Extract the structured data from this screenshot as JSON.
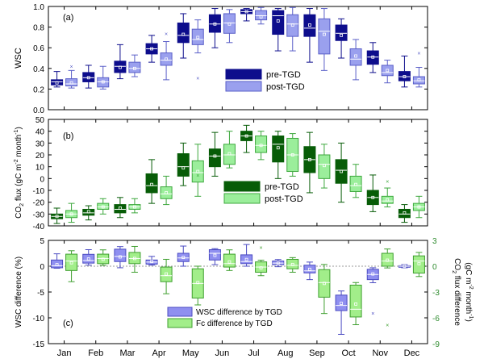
{
  "months": [
    "Jan",
    "Feb",
    "Mar",
    "Apr",
    "May",
    "Jun",
    "Jul",
    "Aug",
    "Sep",
    "Oct",
    "Nov",
    "Dec"
  ],
  "colors": {
    "pre_wsc": "#0d0d8c",
    "post_wsc": "#9aa0ee",
    "post_wsc_stroke": "#5a5fc8",
    "pre_co2": "#075c07",
    "post_co2": "#9bee9b",
    "post_co2_stroke": "#3da83d",
    "wsc_diff": "#8f8ff0",
    "wsc_diff_stroke": "#4b4bc2",
    "fc_diff": "#a2ee8a",
    "fc_diff_stroke": "#3f9f2f",
    "right_axis": "#2e8b2e"
  },
  "chart_data": [
    {
      "type": "box",
      "panel_label": "(a)",
      "ylabel": "WSC",
      "ylim": [
        0.0,
        1.0
      ],
      "yticks": [
        0.0,
        0.2,
        0.4,
        0.6,
        0.8,
        1.0
      ],
      "ytick_labels": [
        "0.0",
        "0.2",
        "0.4",
        "0.6",
        "0.8",
        "1.0"
      ],
      "legend": [
        "pre-TGD",
        "post-TGD"
      ],
      "series": [
        {
          "name": "pre-TGD",
          "min": [
            0.22,
            0.21,
            0.3,
            0.46,
            0.5,
            0.6,
            0.86,
            0.57,
            0.46,
            0.5,
            0.36,
            0.22
          ],
          "q1": [
            0.24,
            0.27,
            0.36,
            0.54,
            0.65,
            0.75,
            0.93,
            0.73,
            0.71,
            0.67,
            0.44,
            0.28
          ],
          "median": [
            0.27,
            0.31,
            0.42,
            0.59,
            0.72,
            0.83,
            0.95,
            0.91,
            0.79,
            0.74,
            0.51,
            0.32
          ],
          "q3": [
            0.29,
            0.36,
            0.47,
            0.64,
            0.84,
            0.92,
            0.97,
            0.96,
            0.92,
            0.82,
            0.57,
            0.37
          ],
          "max": [
            0.37,
            0.43,
            0.63,
            0.72,
            0.93,
            0.98,
            0.98,
            0.98,
            0.98,
            0.88,
            0.65,
            0.52
          ],
          "mean": [
            0.26,
            0.31,
            0.41,
            0.59,
            0.73,
            0.83,
            0.95,
            0.86,
            0.82,
            0.72,
            0.51,
            0.32
          ]
        },
        {
          "name": "post-TGD",
          "min": [
            0.21,
            0.2,
            0.32,
            0.29,
            0.55,
            0.65,
            0.83,
            0.57,
            0.38,
            0.29,
            0.26,
            0.22
          ],
          "q1": [
            0.23,
            0.22,
            0.36,
            0.43,
            0.63,
            0.74,
            0.87,
            0.71,
            0.54,
            0.43,
            0.33,
            0.25
          ],
          "median": [
            0.25,
            0.27,
            0.4,
            0.48,
            0.68,
            0.84,
            0.91,
            0.83,
            0.76,
            0.49,
            0.36,
            0.28
          ],
          "q3": [
            0.3,
            0.31,
            0.46,
            0.55,
            0.78,
            0.93,
            0.96,
            0.92,
            0.88,
            0.59,
            0.43,
            0.32
          ],
          "max": [
            0.38,
            0.42,
            0.53,
            0.66,
            0.87,
            0.97,
            0.99,
            0.99,
            0.98,
            0.68,
            0.48,
            0.41
          ],
          "mean": [
            0.26,
            0.27,
            0.4,
            0.49,
            0.7,
            0.83,
            0.9,
            0.82,
            0.73,
            0.52,
            0.38,
            0.29
          ],
          "outliers": [
            [
              0,
              0.42
            ],
            [
              3,
              0.74
            ],
            [
              4,
              0.31
            ],
            [
              11,
              0.55
            ]
          ]
        }
      ]
    },
    {
      "type": "box",
      "panel_label": "(b)",
      "ylabel_main": "CO",
      "ylabel_sub": "2",
      "ylabel_rest": " flux (gC m",
      "ylabel_sup1": "-2",
      "ylabel_mid": " month",
      "ylabel_sup2": "-1",
      "ylabel_end": ")",
      "ylim": [
        -40,
        50
      ],
      "yticks": [
        -40,
        -30,
        -20,
        -10,
        0,
        10,
        20,
        30,
        40,
        50
      ],
      "ytick_labels": [
        "-40",
        "-30",
        "-20",
        "-10",
        "0",
        "10",
        "20",
        "30",
        "40",
        "50"
      ],
      "legend": [
        "pre-TGD",
        "post-TGD"
      ],
      "series": [
        {
          "name": "pre-TGD",
          "min": [
            -38,
            -35,
            -33,
            -21,
            -6,
            2,
            22,
            0,
            -12,
            -20,
            -28,
            -37
          ],
          "q1": [
            -34,
            -31,
            -29,
            -12,
            2,
            10,
            32,
            14,
            5,
            -4,
            -22,
            -33
          ],
          "median": [
            -32,
            -29,
            -26,
            -6,
            10,
            19,
            36,
            29,
            16,
            7,
            -16,
            -30
          ],
          "q3": [
            -30,
            -26,
            -22,
            4,
            21,
            25,
            40,
            36,
            27,
            16,
            -10,
            -26
          ],
          "max": [
            -25,
            -23,
            -16,
            16,
            30,
            39,
            45,
            40,
            39,
            30,
            3,
            -22
          ],
          "mean": [
            -32,
            -28,
            -25,
            -5,
            9,
            19,
            36,
            26,
            16,
            6,
            -16,
            -29
          ]
        },
        {
          "name": "post-TGD",
          "min": [
            -37,
            -30,
            -29,
            -22,
            -15,
            9,
            16,
            2,
            -8,
            -16,
            -24,
            -33
          ],
          "q1": [
            -33,
            -26,
            -26,
            -17,
            -3,
            12,
            22,
            6,
            0,
            -11,
            -21,
            -27
          ],
          "median": [
            -30,
            -24,
            -24,
            -13,
            5,
            20,
            28,
            20,
            12,
            -6,
            -19,
            -24
          ],
          "q3": [
            -27,
            -21,
            -22,
            -7,
            15,
            29,
            36,
            34,
            20,
            2,
            -15,
            -21
          ],
          "max": [
            -21,
            -17,
            -17,
            2,
            29,
            40,
            40,
            38,
            29,
            12,
            -8,
            -15
          ],
          "mean": [
            -30,
            -24,
            -24,
            -12,
            6,
            21,
            28,
            20,
            11,
            -5,
            -18,
            -24
          ],
          "outliers": [
            [
              4,
              3
            ],
            [
              10,
              -2
            ]
          ]
        }
      ]
    },
    {
      "type": "box",
      "panel_label": "(c)",
      "ylabel": "WSC difference (%)",
      "ylim": [
        -15,
        5
      ],
      "yticks": [
        -15,
        -10,
        -5,
        0,
        5
      ],
      "ytick_labels": [
        "-15",
        "-10",
        "-5",
        "0",
        "5"
      ],
      "ylabel_right_main": "CO",
      "ylabel_right_sub": "2",
      "ylabel_right_rest": " flux difference",
      "ylabel_right_line2_a": "(gC m",
      "ylabel_right_line2_sup1": "-2",
      "ylabel_right_line2_b": " month",
      "ylabel_right_line2_sup2": "-1",
      "ylabel_right_line2_c": ")",
      "ylim_right": [
        -9,
        3
      ],
      "yticks_right": [
        -9,
        -6,
        -3,
        0,
        3
      ],
      "ytick_labels_right": [
        "-9",
        "-6",
        "-3",
        "0",
        "3"
      ],
      "legend": [
        "WSC difference by TGD",
        "Fc difference by TGD"
      ],
      "series": [
        {
          "name": "WSC difference by TGD",
          "axis": "left",
          "min": [
            -0.4,
            0.2,
            -0.3,
            0.2,
            0.0,
            0.3,
            0.0,
            -0.1,
            -2.6,
            -13.2,
            -3.2,
            -0.3
          ],
          "q1": [
            -0.3,
            0.6,
            0.9,
            0.4,
            0.9,
            1.2,
            0.5,
            0.3,
            -1.3,
            -8.6,
            -2.6,
            -0.2
          ],
          "median": [
            0.1,
            1.1,
            1.9,
            0.8,
            1.6,
            2.5,
            0.9,
            0.6,
            -0.9,
            -7.6,
            -1.6,
            0.0
          ],
          "q3": [
            1.2,
            2.3,
            3.3,
            1.2,
            2.5,
            3.2,
            2.2,
            1.0,
            0.2,
            -5.6,
            -0.6,
            0.1
          ],
          "max": [
            2.4,
            3.2,
            3.8,
            1.9,
            3.9,
            3.4,
            4.2,
            1.3,
            0.8,
            -4.8,
            -0.3,
            0.3
          ],
          "mean": [
            0.3,
            1.4,
            1.8,
            0.9,
            1.7,
            2.1,
            1.3,
            0.6,
            -0.6,
            -7.2,
            -1.5,
            0.0
          ],
          "outliers": [
            [
              10,
              -9.1
            ]
          ]
        },
        {
          "name": "Fc difference by TGD",
          "axis": "right",
          "min": [
            -1.8,
            0.1,
            -0.7,
            -3.2,
            -4.5,
            -0.5,
            -1.1,
            -0.7,
            -5.5,
            -6.8,
            -0.2,
            -1.2
          ],
          "q1": [
            -0.5,
            0.3,
            0.3,
            -1.8,
            -3.7,
            -0.1,
            -0.7,
            -0.3,
            -3.6,
            -5.9,
            0.0,
            -0.8
          ],
          "median": [
            0.6,
            0.9,
            0.9,
            -1.1,
            -2.0,
            0.3,
            -0.1,
            0.1,
            -1.9,
            -5.0,
            0.6,
            0.6
          ],
          "q3": [
            1.4,
            1.4,
            1.6,
            -0.1,
            -0.3,
            1.4,
            0.5,
            0.8,
            -0.4,
            -2.2,
            1.5,
            1.2
          ],
          "max": [
            1.8,
            1.9,
            2.3,
            0.8,
            0.0,
            1.9,
            0.7,
            1.0,
            0.2,
            -1.9,
            2.0,
            1.6
          ],
          "mean": [
            0.4,
            0.8,
            0.9,
            -0.9,
            -1.9,
            0.5,
            -0.2,
            0.2,
            -2.0,
            -4.4,
            0.7,
            0.3
          ],
          "outliers": [
            [
              6,
              2.2
            ],
            [
              10,
              -6.8
            ]
          ]
        }
      ]
    }
  ]
}
